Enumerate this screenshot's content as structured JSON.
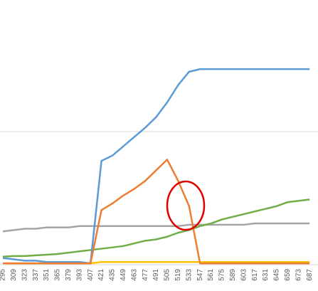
{
  "chart_data": {
    "type": "line",
    "categories": [
      "295",
      "309",
      "323",
      "337",
      "351",
      "365",
      "379",
      "393",
      "407",
      "421",
      "435",
      "449",
      "463",
      "477",
      "491",
      "505",
      "519",
      "533",
      "547",
      "561",
      "575",
      "589",
      "603",
      "617",
      "631",
      "645",
      "659",
      "673",
      "687"
    ],
    "series": [
      {
        "color": "#a5a5a5",
        "values": [
          0.25,
          0.26,
          0.27,
          0.27,
          0.28,
          0.28,
          0.28,
          0.29,
          0.29,
          0.29,
          0.29,
          0.29,
          0.29,
          0.29,
          0.29,
          0.29,
          0.29,
          0.3,
          0.3,
          0.3,
          0.3,
          0.3,
          0.3,
          0.31,
          0.31,
          0.31,
          0.31,
          0.31,
          0.31
        ]
      },
      {
        "color": "#70ad47",
        "values": [
          0.06,
          0.065,
          0.065,
          0.07,
          0.075,
          0.08,
          0.09,
          0.1,
          0.11,
          0.12,
          0.13,
          0.14,
          0.16,
          0.18,
          0.19,
          0.21,
          0.24,
          0.26,
          0.29,
          0.31,
          0.34,
          0.36,
          0.38,
          0.4,
          0.42,
          0.44,
          0.47,
          0.48,
          0.49
        ]
      },
      {
        "color": "#ffc000",
        "values": [
          0.01,
          0.01,
          0.01,
          0.01,
          0.01,
          0.01,
          0.01,
          0.01,
          0.01,
          0.02,
          0.02,
          0.02,
          0.02,
          0.02,
          0.02,
          0.02,
          0.02,
          0.02,
          0.02,
          0.02,
          0.02,
          0.02,
          0.02,
          0.02,
          0.02,
          0.02,
          0.02,
          0.02,
          0.02
        ]
      },
      {
        "color": "#5b9bd5",
        "values": [
          0.05,
          0.04,
          0.03,
          0.03,
          0.02,
          0.02,
          0.02,
          0.02,
          0.01,
          0.78,
          0.82,
          0.89,
          0.96,
          1.03,
          1.11,
          1.22,
          1.35,
          1.45,
          1.47,
          1.47,
          1.47,
          1.47,
          1.47,
          1.47,
          1.47,
          1.47,
          1.47,
          1.47,
          1.47
        ]
      },
      {
        "color": "#ed7d31",
        "values": [
          0.01,
          0.01,
          0.01,
          0.01,
          0.01,
          0.01,
          0.01,
          0.01,
          0.01,
          0.41,
          0.46,
          0.52,
          0.57,
          0.63,
          0.71,
          0.79,
          0.63,
          0.44,
          0.01,
          0.01,
          0.01,
          0.01,
          0.01,
          0.01,
          0.01,
          0.01,
          0.01,
          0.01,
          0.01
        ]
      }
    ],
    "ylim": [
      0,
      2
    ],
    "yticks": [
      0,
      1,
      2
    ],
    "grid": true
  }
}
